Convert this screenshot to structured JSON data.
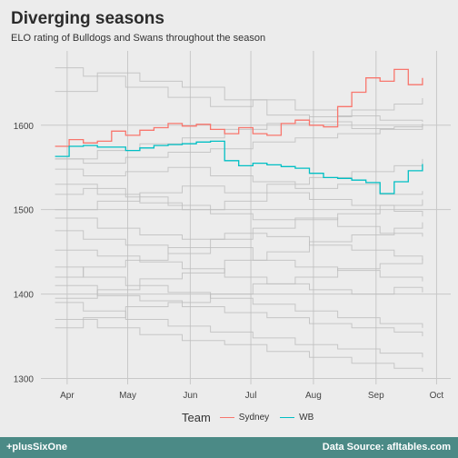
{
  "title": "Diverging seasons",
  "subtitle": "ELO rating of Bulldogs and Swans throughout the season",
  "footer": {
    "left": "+plusSixOne",
    "right": "Data Source: afltables.com"
  },
  "legend": {
    "title": "Team",
    "items": [
      {
        "label": "Sydney",
        "color": "#f8766d"
      },
      {
        "label": "WB",
        "color": "#00bfc4"
      }
    ]
  },
  "chart_data": {
    "type": "line",
    "title": "Diverging seasons",
    "subtitle": "ELO rating of Bulldogs and Swans throughout the season",
    "xlabel": "",
    "ylabel": "",
    "x_ticks": [
      "Apr",
      "May",
      "Jun",
      "Jul",
      "Aug",
      "Sep",
      "Oct"
    ],
    "xlim": [
      "2016-03-19",
      "2016-10-08"
    ],
    "ylim": [
      1293,
      1688
    ],
    "y_ticks": [
      1300,
      1400,
      1500,
      1600
    ],
    "grid": true,
    "legend_position": "bottom",
    "series": [
      {
        "name": "Sydney",
        "color": "#f8766d",
        "x": [
          "2016-03-26",
          "2016-04-02",
          "2016-04-09",
          "2016-04-16",
          "2016-04-23",
          "2016-04-30",
          "2016-05-07",
          "2016-05-14",
          "2016-05-21",
          "2016-05-28",
          "2016-06-04",
          "2016-06-11",
          "2016-06-18",
          "2016-06-25",
          "2016-07-02",
          "2016-07-09",
          "2016-07-16",
          "2016-07-23",
          "2016-07-30",
          "2016-08-06",
          "2016-08-13",
          "2016-08-20",
          "2016-08-27",
          "2016-09-03",
          "2016-09-10",
          "2016-09-17",
          "2016-09-24"
        ],
        "values": [
          1575,
          1583,
          1579,
          1581,
          1593,
          1588,
          1594,
          1597,
          1602,
          1599,
          1601,
          1595,
          1590,
          1597,
          1590,
          1588,
          1602,
          1606,
          1600,
          1598,
          1622,
          1639,
          1656,
          1652,
          1666,
          1648,
          1656
        ]
      },
      {
        "name": "WB",
        "color": "#00bfc4",
        "x": [
          "2016-03-26",
          "2016-04-02",
          "2016-04-09",
          "2016-04-16",
          "2016-04-23",
          "2016-04-30",
          "2016-05-07",
          "2016-05-14",
          "2016-05-21",
          "2016-05-28",
          "2016-06-04",
          "2016-06-11",
          "2016-06-18",
          "2016-06-25",
          "2016-07-02",
          "2016-07-09",
          "2016-07-16",
          "2016-07-23",
          "2016-07-30",
          "2016-08-06",
          "2016-08-13",
          "2016-08-20",
          "2016-08-27",
          "2016-09-03",
          "2016-09-10",
          "2016-09-17",
          "2016-09-24"
        ],
        "values": [
          1563,
          1575,
          1576,
          1574,
          1574,
          1570,
          1573,
          1576,
          1577,
          1578,
          1580,
          1581,
          1558,
          1552,
          1555,
          1553,
          1551,
          1549,
          1543,
          1538,
          1537,
          1535,
          1532,
          1519,
          1533,
          1546,
          1554
        ]
      }
    ],
    "background_series": [
      {
        "x": [
          "2016-03-26",
          "2016-04-16",
          "2016-05-07",
          "2016-05-28",
          "2016-06-18",
          "2016-07-09",
          "2016-07-30",
          "2016-08-20",
          "2016-09-10",
          "2016-09-24"
        ],
        "values": [
          1640,
          1662,
          1652,
          1645,
          1630,
          1612,
          1604,
          1596,
          1598,
          1602
        ]
      },
      {
        "x": [
          "2016-03-26",
          "2016-04-09",
          "2016-04-30",
          "2016-05-21",
          "2016-06-11",
          "2016-07-02",
          "2016-07-23",
          "2016-08-13",
          "2016-09-03",
          "2016-09-24"
        ],
        "values": [
          1668,
          1658,
          1645,
          1633,
          1622,
          1630,
          1618,
          1611,
          1606,
          1604
        ]
      },
      {
        "x": [
          "2016-03-26",
          "2016-04-16",
          "2016-05-07",
          "2016-05-28",
          "2016-06-18",
          "2016-07-09",
          "2016-07-30",
          "2016-08-20",
          "2016-09-10",
          "2016-09-24"
        ],
        "values": [
          1560,
          1570,
          1578,
          1585,
          1595,
          1602,
          1610,
          1618,
          1625,
          1632
        ]
      },
      {
        "x": [
          "2016-03-26",
          "2016-04-09",
          "2016-04-30",
          "2016-05-21",
          "2016-06-11",
          "2016-07-02",
          "2016-07-23",
          "2016-08-13",
          "2016-09-03",
          "2016-09-24"
        ],
        "values": [
          1548,
          1540,
          1545,
          1550,
          1540,
          1533,
          1525,
          1530,
          1518,
          1522
        ]
      },
      {
        "x": [
          "2016-03-26",
          "2016-04-16",
          "2016-05-07",
          "2016-05-28",
          "2016-06-18",
          "2016-07-09",
          "2016-07-30",
          "2016-08-20",
          "2016-09-10",
          "2016-09-24"
        ],
        "values": [
          1530,
          1518,
          1508,
          1500,
          1510,
          1520,
          1512,
          1505,
          1498,
          1492
        ]
      },
      {
        "x": [
          "2016-03-26",
          "2016-04-09",
          "2016-04-30",
          "2016-05-21",
          "2016-06-11",
          "2016-07-02",
          "2016-07-23",
          "2016-08-13",
          "2016-09-03",
          "2016-09-24"
        ],
        "values": [
          1518,
          1525,
          1515,
          1505,
          1495,
          1488,
          1490,
          1480,
          1472,
          1468
        ]
      },
      {
        "x": [
          "2016-03-26",
          "2016-04-16",
          "2016-05-07",
          "2016-05-28",
          "2016-06-18",
          "2016-07-09",
          "2016-07-30",
          "2016-08-20",
          "2016-09-10",
          "2016-09-24"
        ],
        "values": [
          1490,
          1478,
          1470,
          1465,
          1472,
          1468,
          1458,
          1452,
          1445,
          1440
        ]
      },
      {
        "x": [
          "2016-03-26",
          "2016-04-09",
          "2016-04-30",
          "2016-05-21",
          "2016-06-11",
          "2016-07-02",
          "2016-07-23",
          "2016-08-13",
          "2016-09-03",
          "2016-09-24"
        ],
        "values": [
          1475,
          1465,
          1458,
          1448,
          1455,
          1440,
          1432,
          1428,
          1420,
          1415
        ]
      },
      {
        "x": [
          "2016-03-26",
          "2016-04-16",
          "2016-05-07",
          "2016-05-28",
          "2016-06-18",
          "2016-07-09",
          "2016-07-30",
          "2016-08-20",
          "2016-09-10",
          "2016-09-24"
        ],
        "values": [
          1452,
          1445,
          1438,
          1430,
          1420,
          1412,
          1405,
          1400,
          1408,
          1402
        ]
      },
      {
        "x": [
          "2016-03-26",
          "2016-04-09",
          "2016-04-30",
          "2016-05-21",
          "2016-06-11",
          "2016-07-02",
          "2016-07-23",
          "2016-08-13",
          "2016-09-03",
          "2016-09-24"
        ],
        "values": [
          1432,
          1420,
          1410,
          1402,
          1395,
          1388,
          1380,
          1372,
          1365,
          1360
        ]
      },
      {
        "x": [
          "2016-03-26",
          "2016-04-16",
          "2016-05-07",
          "2016-05-28",
          "2016-06-18",
          "2016-07-09",
          "2016-07-30",
          "2016-08-20",
          "2016-09-10",
          "2016-09-24"
        ],
        "values": [
          1410,
          1398,
          1392,
          1385,
          1378,
          1372,
          1365,
          1360,
          1355,
          1350
        ]
      },
      {
        "x": [
          "2016-03-26",
          "2016-04-09",
          "2016-04-30",
          "2016-05-21",
          "2016-06-11",
          "2016-07-02",
          "2016-07-23",
          "2016-08-13",
          "2016-09-03",
          "2016-09-24"
        ],
        "values": [
          1390,
          1380,
          1370,
          1362,
          1355,
          1348,
          1340,
          1335,
          1330,
          1325
        ]
      },
      {
        "x": [
          "2016-03-26",
          "2016-04-16",
          "2016-05-07",
          "2016-05-28",
          "2016-06-18",
          "2016-07-09",
          "2016-07-30",
          "2016-08-20",
          "2016-09-10",
          "2016-09-24"
        ],
        "values": [
          1370,
          1360,
          1352,
          1345,
          1340,
          1332,
          1325,
          1318,
          1312,
          1308
        ]
      },
      {
        "x": [
          "2016-03-26",
          "2016-04-09",
          "2016-04-30",
          "2016-05-21",
          "2016-06-11",
          "2016-07-02",
          "2016-07-23",
          "2016-08-13",
          "2016-09-03",
          "2016-09-24"
        ],
        "values": [
          1560,
          1555,
          1562,
          1568,
          1572,
          1580,
          1585,
          1590,
          1595,
          1600
        ]
      },
      {
        "x": [
          "2016-03-26",
          "2016-04-16",
          "2016-05-07",
          "2016-05-28",
          "2016-06-18",
          "2016-07-09",
          "2016-07-30",
          "2016-08-20",
          "2016-09-10",
          "2016-09-24"
        ],
        "values": [
          1500,
          1510,
          1520,
          1528,
          1520,
          1530,
          1538,
          1545,
          1552,
          1560
        ]
      },
      {
        "x": [
          "2016-03-26",
          "2016-04-09",
          "2016-04-30",
          "2016-05-21",
          "2016-06-11",
          "2016-07-02",
          "2016-07-23",
          "2016-08-13",
          "2016-09-03",
          "2016-09-24"
        ],
        "values": [
          1420,
          1432,
          1440,
          1455,
          1465,
          1478,
          1488,
          1495,
          1505,
          1512
        ]
      },
      {
        "x": [
          "2016-03-26",
          "2016-04-16",
          "2016-05-07",
          "2016-05-28",
          "2016-06-18",
          "2016-07-09",
          "2016-07-30",
          "2016-08-20",
          "2016-09-10",
          "2016-09-24"
        ],
        "values": [
          1395,
          1405,
          1418,
          1425,
          1440,
          1450,
          1462,
          1470,
          1478,
          1485
        ]
      },
      {
        "x": [
          "2016-03-26",
          "2016-04-09",
          "2016-04-30",
          "2016-05-21",
          "2016-06-11",
          "2016-07-02",
          "2016-07-23",
          "2016-08-13",
          "2016-09-03",
          "2016-09-24"
        ],
        "values": [
          1360,
          1372,
          1385,
          1390,
          1400,
          1412,
          1420,
          1430,
          1436,
          1442
        ]
      }
    ]
  }
}
